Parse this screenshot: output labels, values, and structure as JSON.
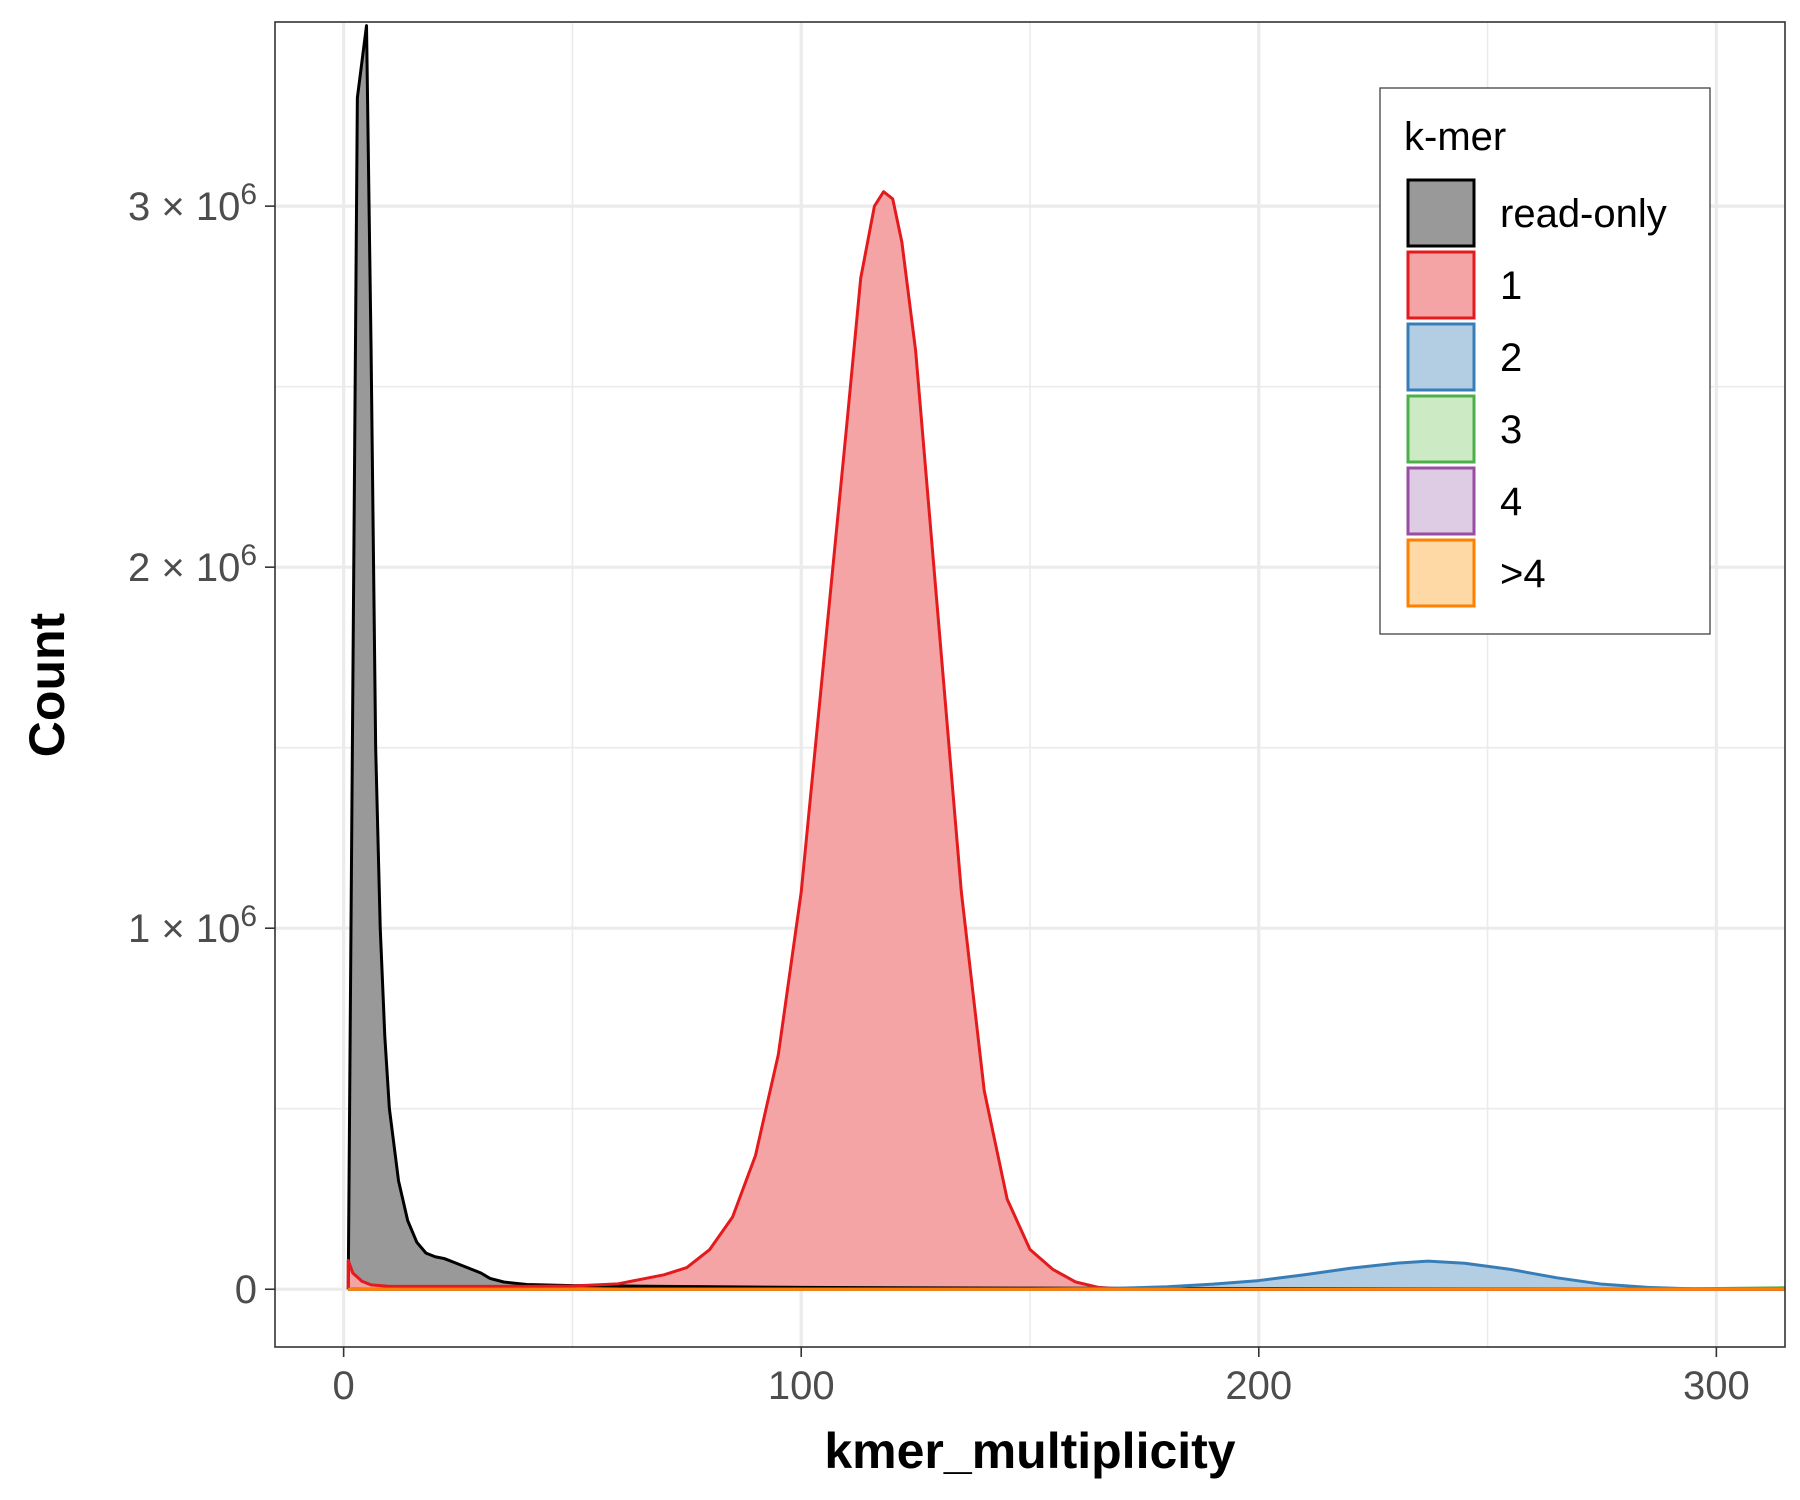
{
  "chart_data": {
    "type": "area",
    "xlabel": "kmer_multiplicity",
    "ylabel": "Count",
    "xlim": [
      -15,
      315
    ],
    "ylim": [
      -160000,
      3510000
    ],
    "x_ticks": [
      0,
      100,
      200,
      300
    ],
    "x_tick_labels": [
      "0",
      "100",
      "200",
      "300"
    ],
    "y_ticks": [
      0,
      1000000,
      2000000,
      3000000
    ],
    "y_tick_labels": [
      {
        "plain": "0"
      },
      {
        "mantissa": "1",
        "times": "×",
        "base": "10",
        "exp": "6"
      },
      {
        "mantissa": "2",
        "times": "×",
        "base": "10",
        "exp": "6"
      },
      {
        "mantissa": "3",
        "times": "×",
        "base": "10",
        "exp": "6"
      }
    ],
    "grid": true,
    "legend": {
      "title": "k-mer",
      "position": "top-right",
      "entries": [
        "read-only",
        "1",
        "2",
        "3",
        "4",
        ">4"
      ]
    },
    "series": [
      {
        "name": "read-only",
        "fill": "#999999",
        "stroke": "#000000",
        "points": [
          [
            1,
            0
          ],
          [
            3,
            3300000
          ],
          [
            5,
            3500000
          ],
          [
            6,
            2600000
          ],
          [
            7,
            1500000
          ],
          [
            8,
            1000000
          ],
          [
            9,
            700000
          ],
          [
            10,
            500000
          ],
          [
            12,
            300000
          ],
          [
            14,
            190000
          ],
          [
            16,
            130000
          ],
          [
            18,
            100000
          ],
          [
            20,
            90000
          ],
          [
            22,
            85000
          ],
          [
            24,
            75000
          ],
          [
            26,
            65000
          ],
          [
            28,
            55000
          ],
          [
            30,
            45000
          ],
          [
            32,
            30000
          ],
          [
            35,
            20000
          ],
          [
            40,
            13000
          ],
          [
            50,
            10000
          ],
          [
            70,
            8000
          ],
          [
            100,
            5000
          ],
          [
            150,
            3000
          ],
          [
            200,
            2000
          ],
          [
            250,
            1000
          ],
          [
            300,
            500
          ],
          [
            315,
            300
          ]
        ]
      },
      {
        "name": "1",
        "fill": "#f4a4a5",
        "stroke": "#e41a1c",
        "points": [
          [
            1,
            80000
          ],
          [
            2,
            45000
          ],
          [
            4,
            22000
          ],
          [
            6,
            12000
          ],
          [
            10,
            8000
          ],
          [
            20,
            8000
          ],
          [
            40,
            8000
          ],
          [
            50,
            9000
          ],
          [
            60,
            15000
          ],
          [
            70,
            40000
          ],
          [
            75,
            60000
          ],
          [
            80,
            110000
          ],
          [
            85,
            200000
          ],
          [
            90,
            370000
          ],
          [
            95,
            650000
          ],
          [
            100,
            1100000
          ],
          [
            105,
            1750000
          ],
          [
            110,
            2400000
          ],
          [
            113,
            2800000
          ],
          [
            116,
            3000000
          ],
          [
            118,
            3040000
          ],
          [
            120,
            3020000
          ],
          [
            122,
            2900000
          ],
          [
            125,
            2600000
          ],
          [
            130,
            1850000
          ],
          [
            135,
            1100000
          ],
          [
            140,
            550000
          ],
          [
            145,
            250000
          ],
          [
            150,
            110000
          ],
          [
            155,
            55000
          ],
          [
            160,
            20000
          ],
          [
            165,
            5000
          ],
          [
            170,
            1000
          ],
          [
            180,
            0
          ],
          [
            315,
            0
          ]
        ]
      },
      {
        "name": "2",
        "fill": "#b3cde3",
        "stroke": "#377eb8",
        "points": [
          [
            1,
            0
          ],
          [
            2,
            1000
          ],
          [
            5,
            500
          ],
          [
            50,
            0
          ],
          [
            150,
            1000
          ],
          [
            170,
            3000
          ],
          [
            180,
            7000
          ],
          [
            190,
            14000
          ],
          [
            200,
            24000
          ],
          [
            210,
            40000
          ],
          [
            220,
            58000
          ],
          [
            230,
            72000
          ],
          [
            237,
            78000
          ],
          [
            245,
            72000
          ],
          [
            255,
            55000
          ],
          [
            265,
            32000
          ],
          [
            275,
            14000
          ],
          [
            285,
            5000
          ],
          [
            295,
            1000
          ],
          [
            315,
            0
          ]
        ]
      },
      {
        "name": "3",
        "fill": "#ccebc5",
        "stroke": "#4daf4a",
        "points": [
          [
            1,
            0
          ],
          [
            100,
            0
          ],
          [
            200,
            0
          ],
          [
            280,
            500
          ],
          [
            300,
            2000
          ],
          [
            315,
            4000
          ]
        ]
      },
      {
        "name": "4",
        "fill": "#decbe4",
        "stroke": "#984ea3",
        "points": [
          [
            1,
            0
          ],
          [
            200,
            0
          ],
          [
            315,
            0
          ]
        ]
      },
      {
        "name": ">4",
        "fill": "#fed9a6",
        "stroke": "#ff7f00",
        "points": [
          [
            1,
            0
          ],
          [
            100,
            0
          ],
          [
            200,
            0
          ],
          [
            315,
            0
          ]
        ]
      }
    ]
  }
}
